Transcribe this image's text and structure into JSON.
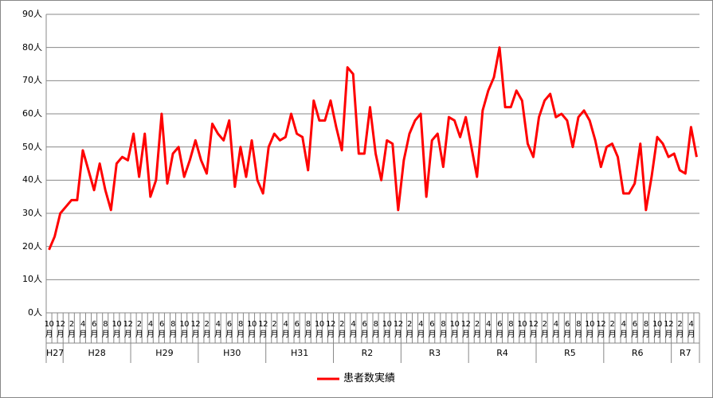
{
  "chart_data": {
    "type": "line",
    "categories": [
      "10月",
      null,
      "12月",
      null,
      "2月",
      null,
      "4月",
      null,
      "6月",
      null,
      "8月",
      null,
      "10月",
      null,
      "12月",
      null,
      "2月",
      null,
      "4月",
      null,
      "6月",
      null,
      "8月",
      null,
      "10月",
      null,
      "12月",
      null,
      "2月",
      null,
      "4月",
      null,
      "6月",
      null,
      "8月",
      null,
      "10月",
      null,
      "12月",
      null,
      "2月",
      null,
      "4月",
      null,
      "6月",
      null,
      "8月",
      null,
      "10月",
      null,
      "12月",
      null,
      "2月",
      null,
      "4月",
      null,
      "6月",
      null,
      "8月",
      null,
      "10月",
      null,
      "12月",
      null,
      "2月",
      null,
      "4月",
      null,
      "6月",
      null,
      "8月",
      null,
      "10月",
      null,
      "12月",
      null,
      "2月",
      null,
      "4月",
      null,
      "6月",
      null,
      "8月",
      null,
      "10月",
      null,
      "12月",
      null,
      "2月",
      null,
      "4月",
      null,
      "6月",
      null,
      "8月",
      null,
      "10月",
      null,
      "12月",
      null,
      "2月",
      null,
      "4月",
      null,
      "6月",
      null,
      "8月",
      null,
      "10月",
      null,
      "12月",
      null,
      "2月",
      null,
      "4月",
      null
    ],
    "groups": [
      {
        "label": "H27",
        "months": 3
      },
      {
        "label": "H28",
        "months": 12
      },
      {
        "label": "H29",
        "months": 12
      },
      {
        "label": "H30",
        "months": 12
      },
      {
        "label": "H31",
        "months": 12
      },
      {
        "label": "R2",
        "months": 12
      },
      {
        "label": "R3",
        "months": 12
      },
      {
        "label": "R4",
        "months": 12
      },
      {
        "label": "R5",
        "months": 12
      },
      {
        "label": "R6",
        "months": 12
      },
      {
        "label": "R7",
        "months": 5
      }
    ],
    "series": [
      {
        "name": "患者数実績",
        "color": "#ff0000",
        "values": [
          19,
          23,
          30,
          32,
          34,
          34,
          49,
          43,
          37,
          45,
          37,
          31,
          45,
          47,
          46,
          54,
          41,
          54,
          35,
          40,
          60,
          39,
          48,
          50,
          41,
          46,
          52,
          46,
          42,
          57,
          54,
          52,
          58,
          38,
          50,
          41,
          52,
          40,
          36,
          50,
          54,
          52,
          53,
          60,
          54,
          53,
          43,
          64,
          58,
          58,
          64,
          56,
          49,
          74,
          72,
          48,
          48,
          62,
          48,
          40,
          52,
          51,
          31,
          46,
          54,
          58,
          60,
          35,
          52,
          54,
          44,
          59,
          58,
          53,
          59,
          50,
          41,
          61,
          67,
          71,
          80,
          62,
          62,
          67,
          64,
          51,
          47,
          59,
          64,
          66,
          59,
          60,
          58,
          50,
          59,
          61,
          58,
          52,
          44,
          50,
          51,
          47,
          36,
          36,
          39,
          51,
          31,
          41,
          53,
          51,
          47,
          48,
          43,
          42,
          56,
          47
        ]
      }
    ],
    "ylim": [
      0,
      90
    ],
    "yticks": [
      {
        "value": 0,
        "label": "0人"
      },
      {
        "value": 10,
        "label": "10人"
      },
      {
        "value": 20,
        "label": "20人"
      },
      {
        "value": 30,
        "label": "30人"
      },
      {
        "value": 40,
        "label": "40人"
      },
      {
        "value": 50,
        "label": "50人"
      },
      {
        "value": 60,
        "label": "60人"
      },
      {
        "value": 70,
        "label": "70人"
      },
      {
        "value": 80,
        "label": "80人"
      },
      {
        "value": 90,
        "label": "90人"
      }
    ],
    "grid": true,
    "legend": "bottom"
  }
}
